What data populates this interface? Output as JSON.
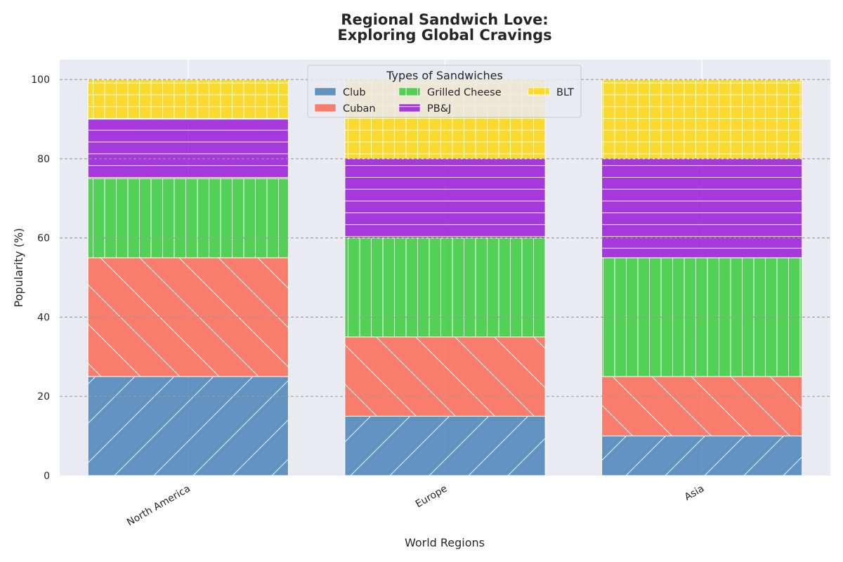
{
  "chart_data": {
    "type": "bar",
    "stacked": true,
    "title_lines": [
      "Regional Sandwich Love:",
      "Exploring Global Cravings"
    ],
    "xlabel": "World Regions",
    "ylabel": "Popularity (%)",
    "ylim": [
      0,
      105
    ],
    "yticks": [
      0,
      20,
      40,
      60,
      80,
      100
    ],
    "grid": true,
    "categories": [
      "North America",
      "Europe",
      "Asia"
    ],
    "series": [
      {
        "name": "Club",
        "values": [
          25,
          15,
          10
        ],
        "color": "#4a82b8",
        "hatch": "diagonal-up"
      },
      {
        "name": "Cuban",
        "values": [
          30,
          20,
          15
        ],
        "color": "#fb6a55",
        "hatch": "diagonal-down"
      },
      {
        "name": "Grilled Cheese",
        "values": [
          20,
          25,
          30
        ],
        "color": "#39cc3b",
        "hatch": "vertical"
      },
      {
        "name": "PB&J",
        "values": [
          15,
          20,
          25
        ],
        "color": "#9a1ad9",
        "hatch": "horizontal"
      },
      {
        "name": "BLT",
        "values": [
          10,
          20,
          20
        ],
        "color": "#fdd70c",
        "hatch": "grid"
      }
    ],
    "legend": {
      "title": "Types of Sandwiches",
      "placement": "top-center",
      "columns": 3
    }
  }
}
